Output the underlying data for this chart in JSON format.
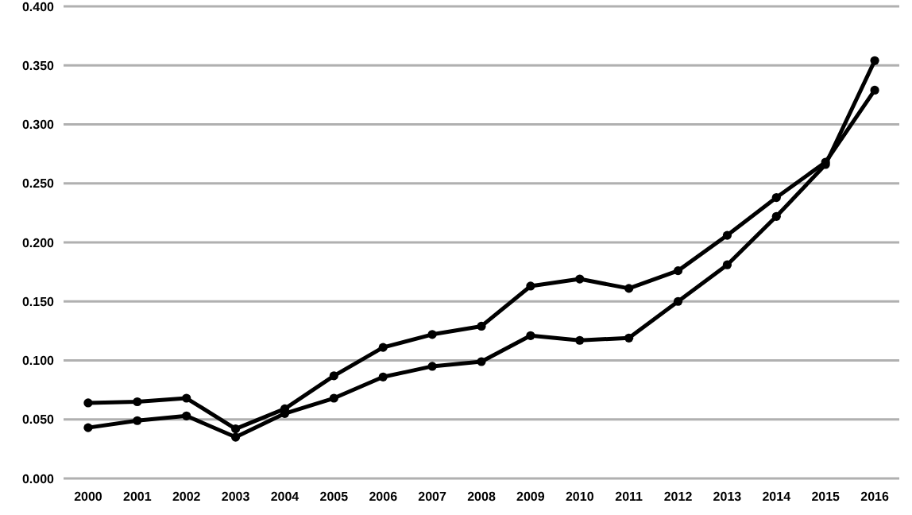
{
  "chart_data": {
    "type": "line",
    "categories": [
      "2000",
      "2001",
      "2002",
      "2003",
      "2004",
      "2005",
      "2006",
      "2007",
      "2008",
      "2009",
      "2010",
      "2011",
      "2012",
      "2013",
      "2014",
      "2015",
      "2016"
    ],
    "series": [
      {
        "color": "#000000",
        "values": [
          0.064,
          0.065,
          0.068,
          0.042,
          0.059,
          0.087,
          0.111,
          0.122,
          0.129,
          0.163,
          0.169,
          0.161,
          0.176,
          0.206,
          0.238,
          0.268,
          0.329
        ]
      },
      {
        "color": "#000000",
        "values": [
          0.043,
          0.049,
          0.053,
          0.035,
          0.055,
          0.068,
          0.086,
          0.095,
          0.099,
          0.121,
          0.117,
          0.119,
          0.15,
          0.181,
          0.222,
          0.266,
          0.354
        ]
      }
    ],
    "ylim": [
      0,
      0.4
    ],
    "yticks": [
      {
        "value": 0,
        "label": "0.000"
      },
      {
        "value": 0.05,
        "label": "0.050"
      },
      {
        "value": 0.1,
        "label": "0.100"
      },
      {
        "value": 0.15,
        "label": "0.150"
      },
      {
        "value": 0.2,
        "label": "0.200"
      },
      {
        "value": 0.25,
        "label": "0.250"
      },
      {
        "value": 0.3,
        "label": "0.300"
      },
      {
        "value": 0.35,
        "label": "0.350"
      },
      {
        "value": 0.4,
        "label": "0.400"
      }
    ],
    "grid": "y",
    "marker": "circle"
  }
}
